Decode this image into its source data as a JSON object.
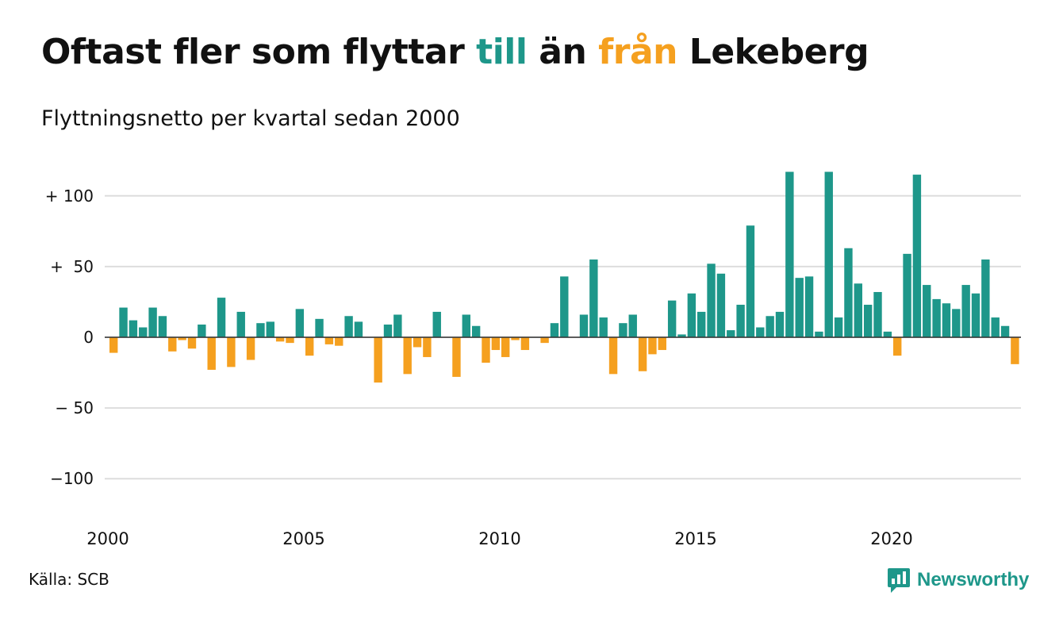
{
  "title": {
    "part1": "Oftast fler som flyttar ",
    "pos_word": "till",
    "part2": " än ",
    "neg_word": "från",
    "part3": " Lekeberg"
  },
  "subtitle": "Flyttningsnetto per kvartal sedan 2000",
  "source": "Källa: SCB",
  "brand": "Newsworthy",
  "colors": {
    "positive": "#1e978a",
    "negative": "#f5a01f",
    "grid": "#dddddd"
  },
  "chart_data": {
    "type": "bar",
    "title": "",
    "xlabel": "",
    "ylabel": "",
    "ylim": [
      -125,
      118
    ],
    "grid": true,
    "y_ticks": [
      {
        "value": 100,
        "label": "+ 100"
      },
      {
        "value": 50,
        "label": "+  50"
      },
      {
        "value": 0,
        "label": "0"
      },
      {
        "value": -50,
        "label": "− 50"
      },
      {
        "value": -100,
        "label": "−100"
      }
    ],
    "x_ticks": [
      "2000",
      "2005",
      "2010",
      "2015",
      "2020"
    ],
    "x_start_year": 2000,
    "values": [
      -11,
      21,
      12,
      7,
      21,
      15,
      -10,
      -2,
      -8,
      9,
      -23,
      28,
      -21,
      18,
      -16,
      10,
      11,
      -3,
      -4,
      20,
      -13,
      13,
      -5,
      -6,
      15,
      11,
      0,
      -32,
      9,
      16,
      -26,
      -7,
      -14,
      18,
      0,
      -28,
      16,
      8,
      -18,
      -9,
      -14,
      -2,
      -9,
      0,
      -4,
      10,
      43,
      0,
      16,
      55,
      14,
      -26,
      10,
      16,
      -24,
      -12,
      -9,
      26,
      2,
      31,
      18,
      52,
      45,
      5,
      23,
      79,
      7,
      15,
      18,
      117,
      42,
      43,
      4,
      117,
      14,
      63,
      38,
      23,
      32,
      4,
      -13,
      59,
      115,
      37,
      27,
      24,
      20,
      37,
      31,
      55,
      14,
      8,
      -19
    ]
  }
}
